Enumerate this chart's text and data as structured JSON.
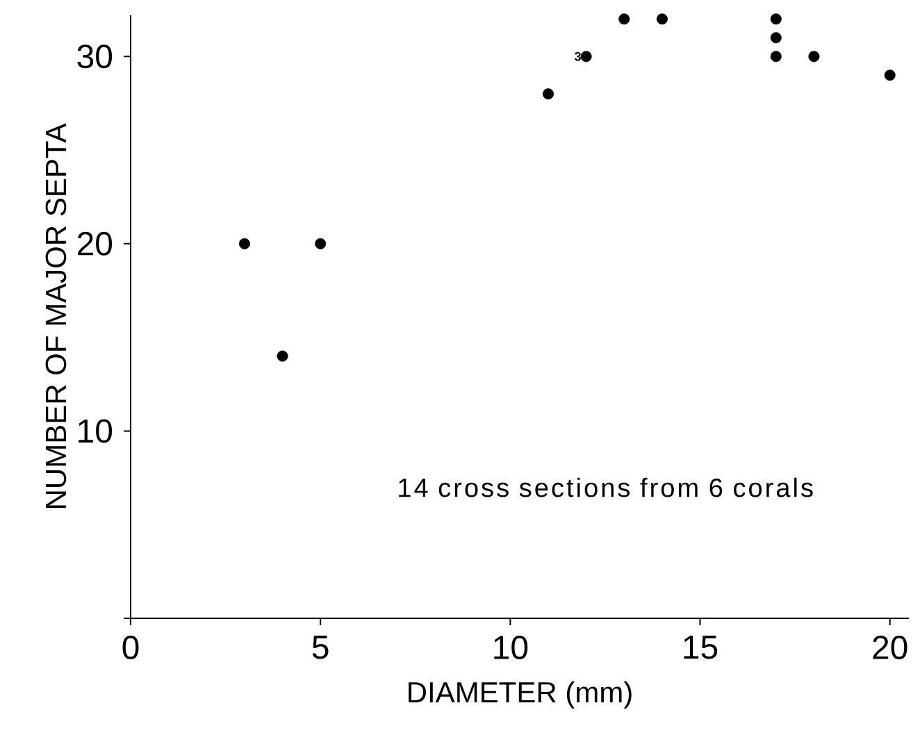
{
  "chart_data": {
    "type": "scatter",
    "xlabel": "DIAMETER (mm)",
    "ylabel": "NUMBER OF MAJOR SEPTA",
    "x": [
      3,
      4,
      5,
      11,
      12,
      13,
      14,
      17,
      17,
      17,
      18,
      20
    ],
    "values": [
      20,
      14,
      20,
      28,
      30,
      32,
      32,
      32,
      31,
      30,
      30,
      29
    ],
    "color": "#000000",
    "marker": "circle",
    "xlim": [
      0,
      20.5
    ],
    "ylim": [
      0,
      32.2
    ],
    "xticks": [
      0,
      5,
      10,
      15,
      20
    ],
    "yticks": [
      {
        "value": 0,
        "label": null
      },
      10,
      20,
      30
    ],
    "grid": false,
    "annotations": [
      {
        "text": "3",
        "x": 12,
        "y": 30
      },
      "14 cross sections from 6 corals"
    ]
  }
}
